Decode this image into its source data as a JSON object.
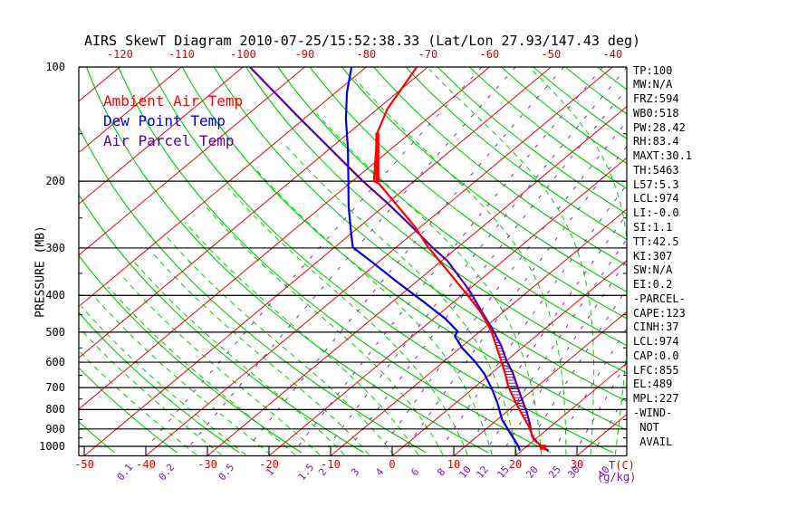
{
  "title": "AIRS SkewT Diagram 2010-07-25/15:52:38.33 (Lat/Lon 27.93/147.43 deg)",
  "colors": {
    "isotherm": "#e01010",
    "dry_adiabat": "#00cc00",
    "moist_adiabat": "#00cc00",
    "mixing_ratio": "#8a22bb",
    "pressure_line": "#000000",
    "ambient": "#ff0000",
    "dewpoint": "#0000dd",
    "parcel": "#5500a0"
  },
  "axes": {
    "pressure_axis_label": "PRESSURE (MB)",
    "pressure_ticks": [
      100,
      200,
      300,
      400,
      500,
      600,
      700,
      800,
      900,
      1000
    ],
    "top_temp_labels": [
      -120,
      -110,
      -100,
      -90,
      -80,
      -70,
      -60,
      -50,
      -40
    ],
    "bottom_temp_labels": [
      -50,
      -40,
      -30,
      -20,
      -10,
      0,
      10,
      20,
      30
    ],
    "temp_unit": "T(C)",
    "mixing_ratio_unit": "(g/kg)"
  },
  "legend": [
    {
      "label": "Ambient Air Temp",
      "color": "#ff0000"
    },
    {
      "label": "Dew Point Temp",
      "color": "#0000dd"
    },
    {
      "label": "Air Parcel Temp",
      "color": "#5500a0"
    }
  ],
  "stats": [
    "TP:100",
    "MW:N/A",
    "FRZ:594",
    "WB0:518",
    "PW:28.42",
    "RH:83.4",
    "MAXT:30.1",
    "TH:5463",
    "L57:5.3",
    "LCL:974",
    "LI:-0.0",
    "SI:1.1",
    "TT:42.5",
    "KI:307",
    "SW:N/A",
    "EI:0.2",
    "-PARCEL-",
    "CAPE:123",
    "CINH:37",
    "LCL:974",
    "CAP:0.0",
    "LFC:855",
    "EL:489",
    "MPL:227",
    "-WIND-",
    " NOT",
    " AVAIL"
  ],
  "chart_data": {
    "type": "line",
    "title": "AIRS SkewT Diagram 2010-07-25/15:52:38.33 (Lat/Lon 27.93/147.43 deg)",
    "xlabel": "T(C)",
    "ylabel": "PRESSURE (MB)",
    "y_scale": "log",
    "y_range": [
      100,
      1050
    ],
    "x_top_labels": [
      -120,
      -110,
      -100,
      -90,
      -80,
      -70,
      -60,
      -50,
      -40
    ],
    "x_bottom_labels": [
      -50,
      -40,
      -30,
      -20,
      -10,
      0,
      10,
      20,
      30
    ],
    "mixing_ratio_lines": [
      0.1,
      0.2,
      0.5,
      1,
      1.5,
      2,
      3,
      4,
      6,
      8,
      10,
      12,
      15,
      20,
      25,
      30,
      40
    ],
    "isotherm_step_c": 10,
    "dry_adiabat_step_k": 10,
    "moist_adiabat_step_c": 4,
    "series": [
      {
        "name": "Ambient Air Temp",
        "color": "#ff0000",
        "units": [
          "hPa",
          "degC"
        ],
        "points": [
          [
            100,
            -71.8
          ],
          [
            129,
            -68.4
          ],
          [
            149,
            -65.4
          ],
          [
            200,
            -56.5
          ],
          [
            203,
            -55.2
          ],
          [
            264,
            -40.9
          ],
          [
            297,
            -35.1
          ],
          [
            343,
            -27.3
          ],
          [
            400,
            -19.0
          ],
          [
            445,
            -13.4
          ],
          [
            497,
            -8.2
          ],
          [
            584,
            -1.6
          ],
          [
            633,
            1.7
          ],
          [
            695,
            5.3
          ],
          [
            764,
            9.5
          ],
          [
            829,
            13.3
          ],
          [
            887,
            16.5
          ],
          [
            962,
            19.9
          ],
          [
            1004,
            22.7
          ]
        ]
      },
      {
        "name": "Dew Point Temp",
        "color": "#0000dd",
        "units": [
          "hPa",
          "degC"
        ],
        "points": [
          [
            100,
            -82.4
          ],
          [
            117,
            -78.1
          ],
          [
            137,
            -73.2
          ],
          [
            164,
            -67.1
          ],
          [
            196,
            -61.3
          ],
          [
            233,
            -55.7
          ],
          [
            274,
            -50.1
          ],
          [
            299,
            -47.0
          ],
          [
            326,
            -41.2
          ],
          [
            368,
            -33.2
          ],
          [
            413,
            -25.4
          ],
          [
            460,
            -18.2
          ],
          [
            497,
            -13.7
          ],
          [
            513,
            -13.1
          ],
          [
            549,
            -9.8
          ],
          [
            595,
            -5.2
          ],
          [
            643,
            -1.1
          ],
          [
            705,
            3.1
          ],
          [
            767,
            6.7
          ],
          [
            851,
            10.8
          ],
          [
            926,
            14.9
          ],
          [
            999,
            18.6
          ],
          [
            1026,
            19.7
          ]
        ]
      },
      {
        "name": "Air Parcel Temp",
        "color": "#5500a0",
        "units": [
          "hPa",
          "degC"
        ],
        "points": [
          [
            100,
            -98.9
          ],
          [
            134,
            -81.9
          ],
          [
            164,
            -70.0
          ],
          [
            199,
            -58.6
          ],
          [
            229,
            -49.9
          ],
          [
            259,
            -42.5
          ],
          [
            299,
            -34.1
          ],
          [
            324,
            -29.1
          ],
          [
            372,
            -21.9
          ],
          [
            393,
            -19.1
          ],
          [
            432,
            -14.6
          ],
          [
            489,
            -8.6
          ],
          [
            540,
            -4.0
          ],
          [
            594,
            0.0
          ],
          [
            643,
            3.6
          ],
          [
            695,
            6.8
          ],
          [
            747,
            9.8
          ],
          [
            814,
            13.4
          ],
          [
            872,
            16.1
          ],
          [
            939,
            18.8
          ],
          [
            981,
            21.2
          ],
          [
            1010,
            23.1
          ],
          [
            1027,
            24.4
          ]
        ]
      }
    ],
    "annotations": {
      "vertical_red_bar": {
        "p_top": 149,
        "p_bottom": 200,
        "t_at_top": -65.4
      },
      "surface_marker": {
        "p": 1004,
        "t": 22.7
      },
      "cape_hatch_pressure_range": [
        395,
        950
      ]
    }
  }
}
